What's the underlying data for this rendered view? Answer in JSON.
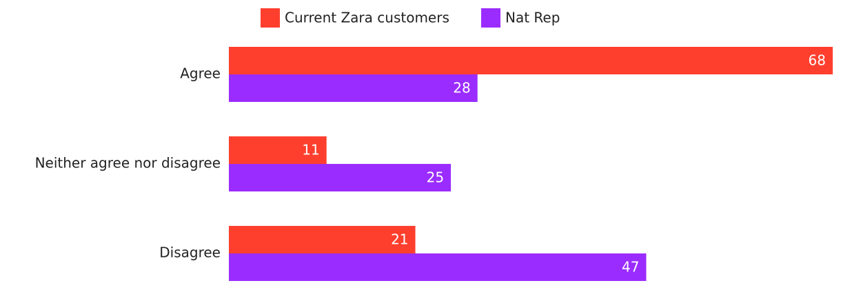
{
  "chart_data": {
    "type": "hbar",
    "categories": [
      "Agree",
      "Neither agree nor disagree",
      "Disagree"
    ],
    "series": [
      {
        "name": "Current Zara customers",
        "color": "#ff3f2e",
        "values": [
          68,
          11,
          21
        ]
      },
      {
        "name": "Nat Rep",
        "color": "#9b2cff",
        "values": [
          28,
          25,
          47
        ]
      }
    ],
    "legend": "top"
  }
}
